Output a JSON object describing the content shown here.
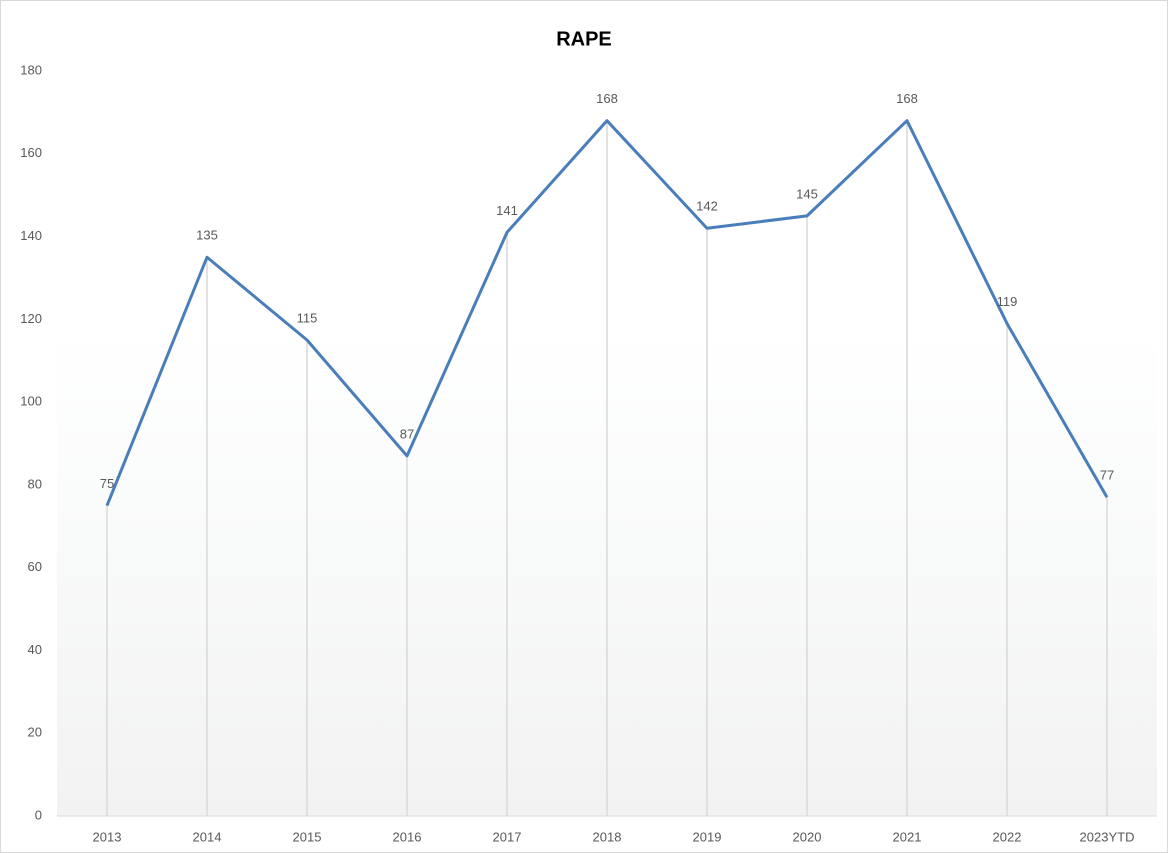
{
  "chart_data": {
    "type": "line",
    "title": "RAPE",
    "categories": [
      "2013",
      "2014",
      "2015",
      "2016",
      "2017",
      "2018",
      "2019",
      "2020",
      "2021",
      "2022",
      "2023YTD"
    ],
    "values": [
      75,
      135,
      115,
      87,
      141,
      168,
      142,
      145,
      168,
      119,
      77
    ],
    "color": "#4a7ebb",
    "ylim": [
      0,
      180
    ],
    "yticks": [
      0,
      20,
      40,
      60,
      80,
      100,
      120,
      140,
      160,
      180
    ],
    "grid": false,
    "drop_lines": true
  }
}
